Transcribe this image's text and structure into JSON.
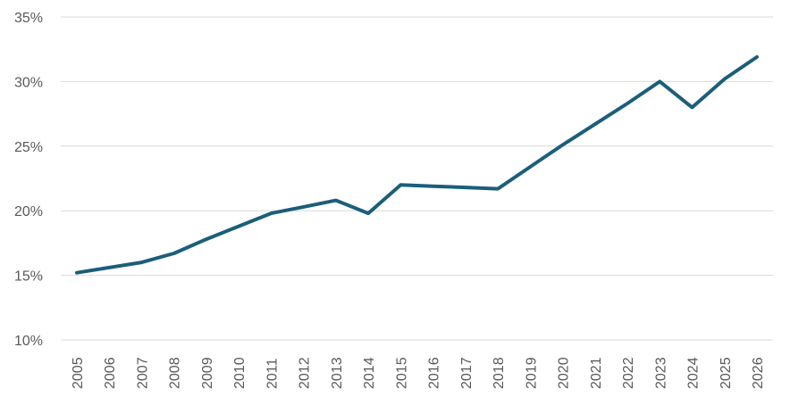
{
  "chart_data": {
    "type": "line",
    "title": "",
    "xlabel": "",
    "ylabel": "",
    "categories": [
      "2005",
      "2006",
      "2007",
      "2008",
      "2009",
      "2010",
      "2011",
      "2012",
      "2013",
      "2014",
      "2015",
      "2016",
      "2017",
      "2018",
      "2019",
      "2020",
      "2021",
      "2022",
      "2023",
      "2024",
      "2025",
      "2026"
    ],
    "series": [
      {
        "values": [
          15.2,
          15.6,
          16.0,
          16.7,
          17.8,
          18.8,
          19.8,
          20.3,
          20.8,
          19.8,
          22.0,
          21.9,
          21.8,
          21.7,
          23.4,
          25.1,
          26.7,
          28.3,
          30.0,
          28.0,
          30.2,
          31.9
        ],
        "color": "#1b5e7a"
      }
    ],
    "ylim": [
      10,
      35
    ],
    "yticks": [
      10,
      15,
      20,
      25,
      30,
      35
    ],
    "ytick_labels": [
      "10%",
      "15%",
      "20%",
      "25%",
      "30%",
      "35%"
    ],
    "grid": "horizontal",
    "legend": "none"
  }
}
